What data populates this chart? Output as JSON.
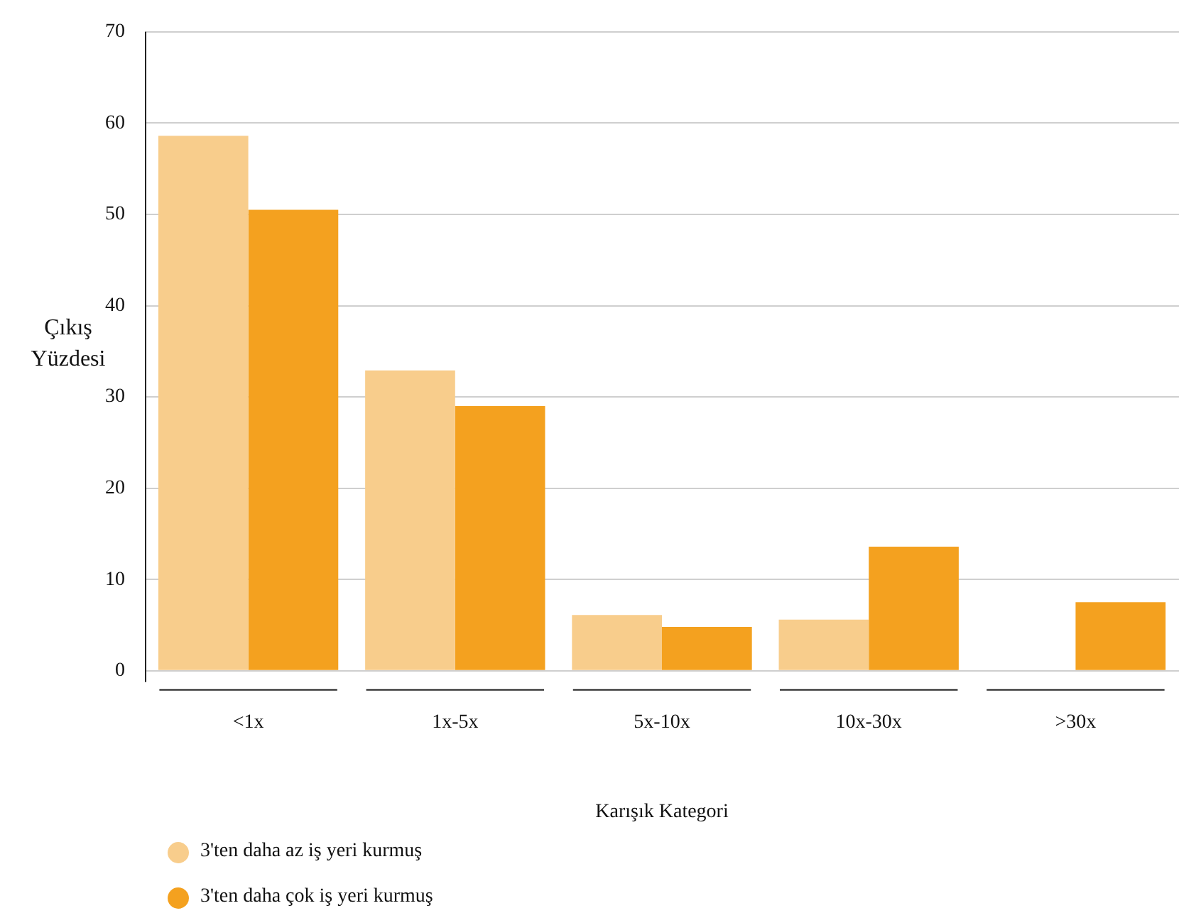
{
  "chart_data": {
    "type": "bar",
    "xlabel": "Karışık Kategori",
    "ylabel": "Çıkış Yüzdesi",
    "categories": [
      "<1x",
      "1x-5x",
      "5x-10x",
      "10x-30x",
      ">30x"
    ],
    "series": [
      {
        "name": "3'ten daha az iş yeri kurmuş",
        "color": "#f8cd8c",
        "values": [
          58.6,
          32.9,
          6.1,
          5.6,
          0
        ]
      },
      {
        "name": "3'ten daha çok iş yeri kurmuş",
        "color": "#f4a11f",
        "values": [
          50.5,
          29.0,
          4.8,
          13.6,
          7.5
        ]
      }
    ],
    "ylim": [
      0,
      70
    ],
    "yticks": [
      0,
      10,
      20,
      30,
      40,
      50,
      60,
      70
    ],
    "grid": "y",
    "legend": "bottom left"
  }
}
